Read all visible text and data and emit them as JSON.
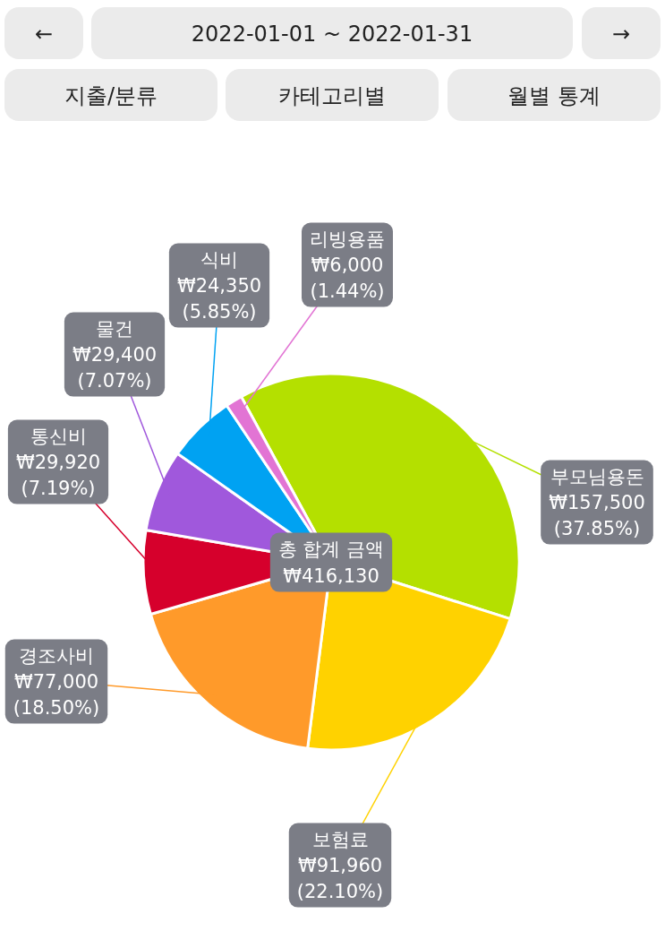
{
  "chart_data": {
    "type": "pie",
    "title": "2022-01-01 ~ 2022-01-31",
    "categories": [
      "부모님용돈",
      "보험료",
      "경조사비",
      "통신비",
      "물건",
      "식비",
      "리빙용품"
    ],
    "values": [
      157500,
      91960,
      77000,
      29920,
      29400,
      24350,
      6000
    ],
    "colors": [
      "#b4e000",
      "#ffd200",
      "#ff9a2a",
      "#d6002c",
      "#a058dc",
      "#00a2f2",
      "#e274d4"
    ],
    "value_labels": [
      "₩157,500\n(37.85%)",
      "₩91,960\n(22.10%)",
      "₩77,000\n(18.50%)",
      "₩29,920\n(7.19%)",
      "₩29,400\n(7.07%)",
      "₩24,350\n(5.85%)",
      "₩6,000\n(1.44%)"
    ],
    "annotations": [
      "←",
      "→",
      "지출/분류",
      "카테고리별",
      "월별 통계",
      "총 합계 금액\n₩416,130"
    ]
  }
}
